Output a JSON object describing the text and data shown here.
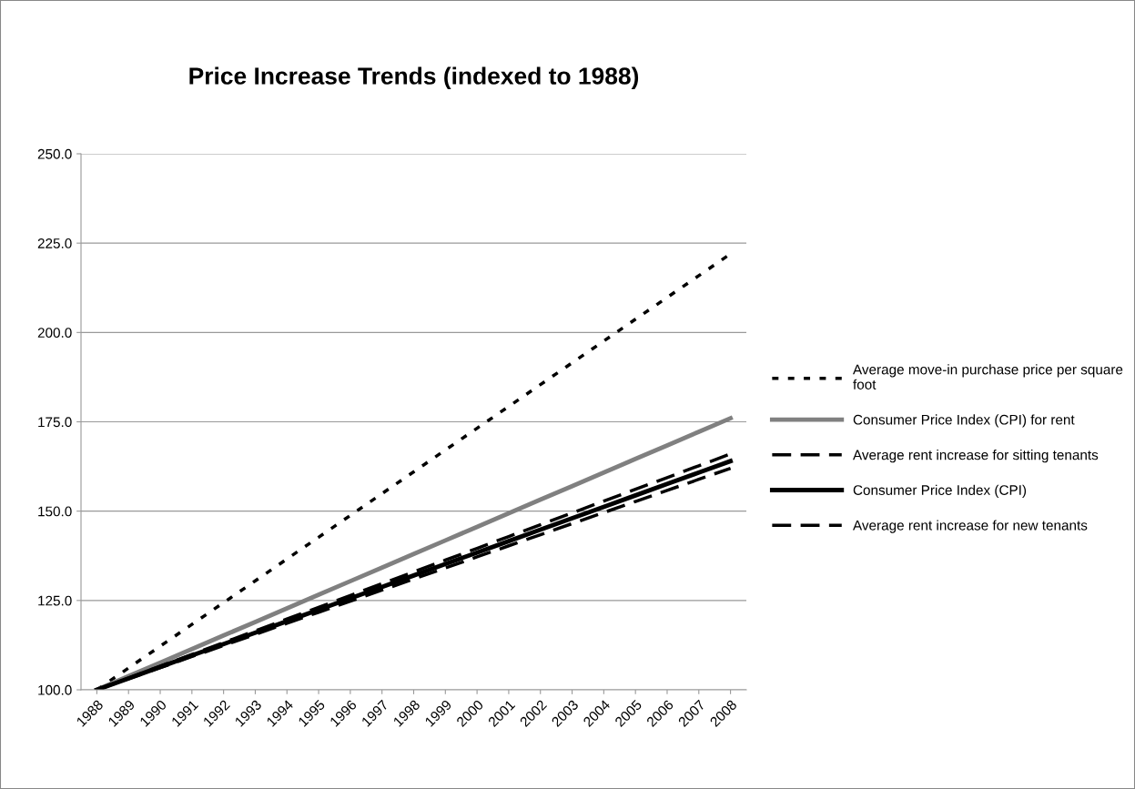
{
  "chart_data": {
    "type": "line",
    "title": "Price Increase Trends (indexed to 1988)",
    "categories": [
      "1988",
      "1989",
      "1990",
      "1991",
      "1992",
      "1993",
      "1994",
      "1995",
      "1996",
      "1997",
      "1998",
      "1999",
      "2000",
      "2001",
      "2002",
      "2003",
      "2004",
      "2005",
      "2006",
      "2007",
      "2008"
    ],
    "series": [
      {
        "name": "Average move-in purchase price per square foot",
        "color": "#000000",
        "line_style": "dotted",
        "values": [
          100.0,
          106.1,
          112.2,
          118.3,
          124.4,
          130.5,
          136.6,
          142.7,
          148.8,
          154.9,
          161.0,
          167.1,
          173.2,
          179.3,
          185.4,
          191.5,
          197.6,
          203.7,
          209.8,
          215.9,
          222.0
        ]
      },
      {
        "name": "Consumer Price Index (CPI) for rent",
        "color": "#808080",
        "line_style": "solid",
        "values": [
          100.0,
          103.8,
          107.6,
          111.4,
          115.2,
          119.0,
          122.8,
          126.6,
          130.4,
          134.2,
          138.0,
          141.8,
          145.6,
          149.4,
          153.2,
          157.0,
          160.8,
          164.6,
          168.4,
          172.2,
          176.0
        ]
      },
      {
        "name": "Average rent increase for sitting tenants",
        "color": "#000000",
        "line_style": "dashed",
        "values": [
          100.0,
          103.3,
          106.6,
          109.9,
          113.2,
          116.5,
          119.8,
          123.1,
          126.4,
          129.7,
          133.0,
          136.3,
          139.6,
          142.9,
          146.2,
          149.5,
          152.8,
          156.1,
          159.4,
          162.7,
          166.0
        ]
      },
      {
        "name": "Consumer Price Index (CPI)",
        "color": "#000000",
        "line_style": "solid",
        "values": [
          100.0,
          103.2,
          106.4,
          109.6,
          112.8,
          116.0,
          119.2,
          122.4,
          125.6,
          128.8,
          132.0,
          135.2,
          138.4,
          141.6,
          144.8,
          148.0,
          151.2,
          154.4,
          157.6,
          160.8,
          164.0
        ]
      },
      {
        "name": "Average rent increase for new tenants",
        "color": "#000000",
        "line_style": "dashed",
        "values": [
          100.0,
          103.1,
          106.2,
          109.3,
          112.4,
          115.5,
          118.6,
          121.7,
          124.8,
          127.9,
          131.0,
          134.1,
          137.2,
          140.3,
          143.4,
          146.5,
          149.6,
          152.7,
          155.8,
          158.9,
          162.0
        ]
      }
    ],
    "ylim": [
      100,
      250
    ],
    "yticks": [
      {
        "value": 100,
        "label": "100.0"
      },
      {
        "value": 125,
        "label": "125.0"
      },
      {
        "value": 150,
        "label": "150.0"
      },
      {
        "value": 175,
        "label": "175.0"
      },
      {
        "value": 200,
        "label": "200.0"
      },
      {
        "value": 225,
        "label": "225.0"
      },
      {
        "value": 250,
        "label": "250.0"
      }
    ],
    "grid": "y",
    "legend": "right",
    "marker": "none"
  }
}
